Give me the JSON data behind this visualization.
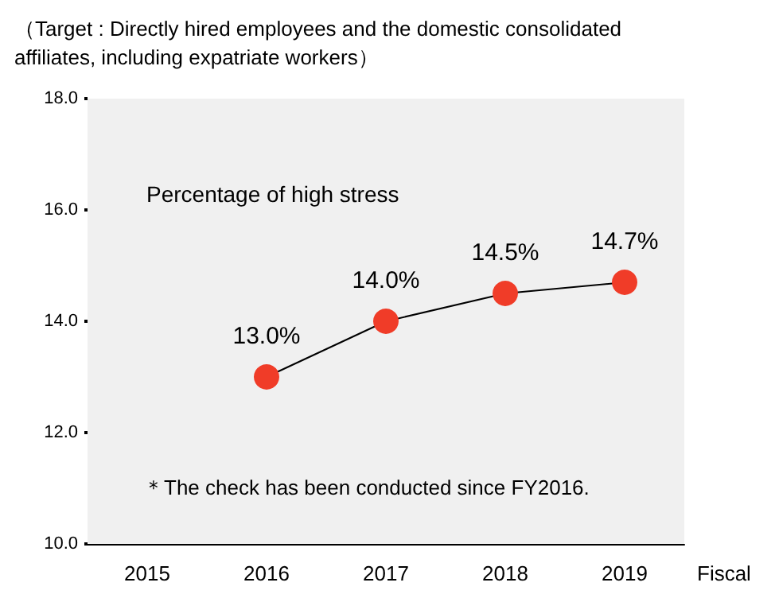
{
  "chart_data": {
    "type": "line",
    "title": "（Target : Directly hired employees and the domestic consolidated affiliates, including expatriate workers）",
    "xlabel": "Fiscal",
    "categories": [
      "2015",
      "2016",
      "2017",
      "2018",
      "2019"
    ],
    "series": [
      {
        "name": "Percentage of high stress",
        "color": "#f03c28",
        "values": [
          null,
          13.0,
          14.0,
          14.5,
          14.7
        ],
        "value_labels": [
          null,
          "13.0%",
          "14.0%",
          "14.5%",
          "14.7%"
        ]
      }
    ],
    "ylim": [
      10,
      18
    ],
    "yticks": [
      {
        "value": 10,
        "label": "10.0"
      },
      {
        "value": 12,
        "label": "12.0"
      },
      {
        "value": 14,
        "label": "14.0"
      },
      {
        "value": 16,
        "label": "16.0"
      },
      {
        "value": 18,
        "label": "18.0"
      }
    ],
    "annotations": [
      "＊The check has been conducted since FY2016."
    ],
    "grid": false,
    "legend": "top left",
    "marker": "circle",
    "line_style": "solid"
  }
}
